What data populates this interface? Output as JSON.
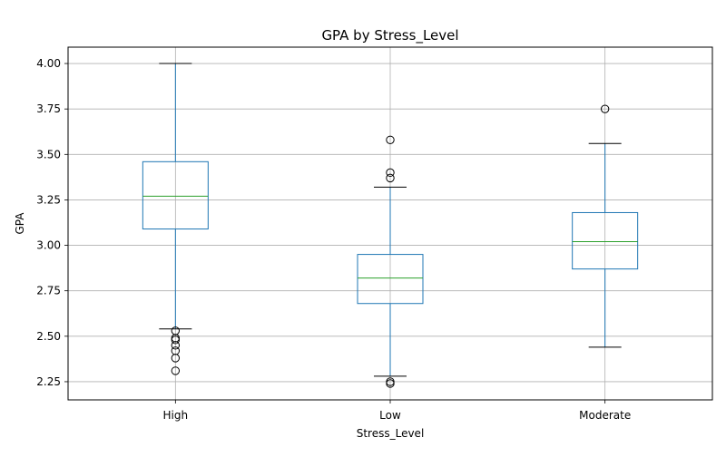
{
  "chart_data": {
    "type": "boxplot",
    "title": "GPA by Stress_Level",
    "xlabel": "Stress_Level",
    "ylabel": "GPA",
    "ylim": [
      2.15,
      4.09
    ],
    "yticks": [
      "2.25",
      "2.50",
      "2.75",
      "3.00",
      "3.25",
      "3.50",
      "3.75",
      "4.00"
    ],
    "grid": true,
    "colors": {
      "box": "#1f77b4",
      "median": "#2ca02c",
      "cap": "#000000",
      "grid": "#b0b0b0",
      "outlier": "#000000"
    },
    "categories": [
      "High",
      "Low",
      "Moderate"
    ],
    "boxes": [
      {
        "label": "High",
        "whisker_low": 2.54,
        "q1": 3.09,
        "median": 3.27,
        "q3": 3.46,
        "whisker_high": 4.0,
        "outliers": [
          2.53,
          2.49,
          2.48,
          2.45,
          2.42,
          2.38,
          2.31
        ]
      },
      {
        "label": "Low",
        "whisker_low": 2.28,
        "q1": 2.68,
        "median": 2.82,
        "q3": 2.95,
        "whisker_high": 3.32,
        "outliers": [
          3.58,
          3.4,
          3.37,
          2.25,
          2.24
        ]
      },
      {
        "label": "Moderate",
        "whisker_low": 2.44,
        "q1": 2.87,
        "median": 3.02,
        "q3": 3.18,
        "whisker_high": 3.56,
        "outliers": [
          3.75
        ]
      }
    ]
  }
}
